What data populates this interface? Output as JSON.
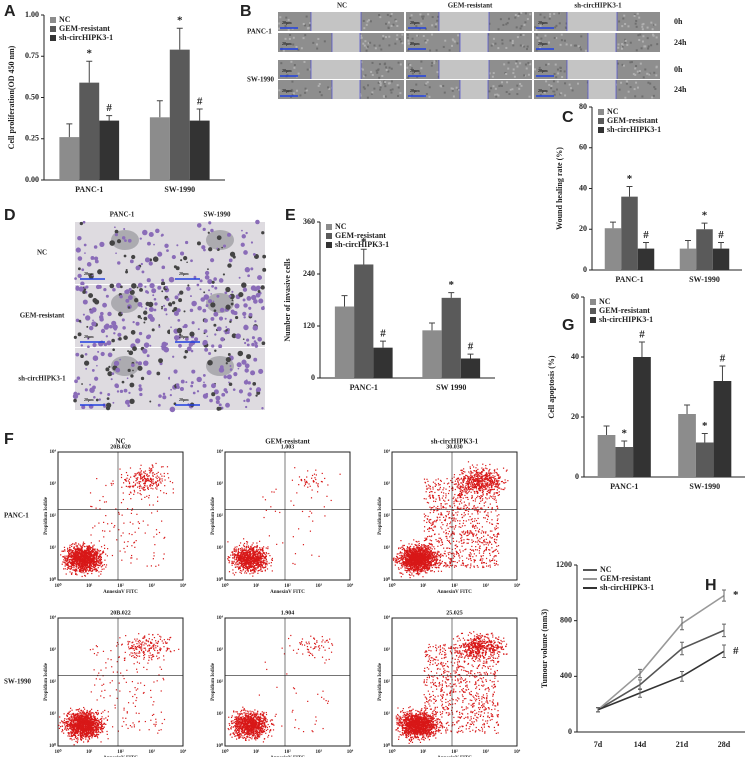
{
  "chart_data": [
    {
      "type": "bar",
      "letter": "A",
      "y_label": "Cell proliferation(OD 450 nm)",
      "categories": [
        "PANC-1",
        "SW-1990"
      ],
      "series": [
        {
          "name": "NC",
          "color": "#8c8c8c",
          "values": [
            0.26,
            0.38
          ],
          "errors": [
            0.08,
            0.1
          ]
        },
        {
          "name": "GEM-resistant",
          "color": "#5a5a5a",
          "values": [
            0.59,
            0.79
          ],
          "errors": [
            0.13,
            0.13
          ],
          "annotations": [
            "*",
            "*"
          ]
        },
        {
          "name": "sh-circHIPK3-1",
          "color": "#333333",
          "values": [
            0.36,
            0.36
          ],
          "errors": [
            0.03,
            0.07
          ],
          "annotations": [
            "#",
            "#"
          ]
        }
      ],
      "ylim": [
        0,
        1
      ],
      "yticks": [
        {
          "value": 0,
          "label": "0.00"
        },
        {
          "value": 0.25,
          "label": "0.25"
        },
        {
          "value": 0.5,
          "label": "0.50"
        },
        {
          "value": 0.75,
          "label": "0.75"
        },
        {
          "value": 1,
          "label": "1.00"
        }
      ]
    },
    {
      "type": "bar",
      "letter": "C",
      "y_label": "Wound healing rate (%)",
      "categories": [
        "PANC-1",
        "SW-1990"
      ],
      "series": [
        {
          "name": "NC",
          "color": "#8c8c8c",
          "values": [
            20.5,
            10.5
          ],
          "errors": [
            3,
            4
          ]
        },
        {
          "name": "GEM-resistant",
          "color": "#5a5a5a",
          "values": [
            36,
            20
          ],
          "errors": [
            5,
            3
          ],
          "annotations": [
            "*",
            "*"
          ]
        },
        {
          "name": "sh-circHIPK3-1",
          "color": "#333333",
          "values": [
            10.5,
            10.5
          ],
          "errors": [
            3,
            3
          ],
          "annotations": [
            "#",
            "#"
          ]
        }
      ],
      "ylim": [
        0,
        80
      ],
      "yticks": [
        0,
        20,
        40,
        60,
        80
      ]
    },
    {
      "type": "bar",
      "letter": "E",
      "y_label": "Number of invasive cells",
      "categories": [
        "PANC-1",
        "SW 1990"
      ],
      "series": [
        {
          "name": "NC",
          "color": "#8c8c8c",
          "values": [
            165,
            110
          ],
          "errors": [
            25,
            17
          ]
        },
        {
          "name": "GEM-resistant",
          "color": "#5a5a5a",
          "values": [
            262,
            185
          ],
          "errors": [
            35,
            12
          ],
          "annotations": [
            "*",
            "*"
          ]
        },
        {
          "name": "sh-circHIPK3-1",
          "color": "#333333",
          "values": [
            70,
            45
          ],
          "errors": [
            15,
            10
          ],
          "annotations": [
            "#",
            "#"
          ]
        }
      ],
      "ylim": [
        0,
        360
      ],
      "yticks": [
        0,
        120,
        240,
        360
      ]
    },
    {
      "type": "bar",
      "letter": "G",
      "y_label": "Cell apoptosis (%)",
      "categories": [
        "PANC-1",
        "SW-1990"
      ],
      "series": [
        {
          "name": "NC",
          "color": "#8c8c8c",
          "values": [
            14,
            21
          ],
          "errors": [
            3,
            3
          ]
        },
        {
          "name": "GEM-resistant",
          "color": "#5a5a5a",
          "values": [
            10,
            11.5
          ],
          "errors": [
            2,
            3
          ],
          "annotations": [
            "*",
            "*"
          ]
        },
        {
          "name": "sh-circHIPK3-1",
          "color": "#333333",
          "values": [
            40,
            32
          ],
          "errors": [
            5,
            5
          ],
          "annotations": [
            "#",
            "#"
          ]
        }
      ],
      "ylim": [
        0,
        60
      ],
      "yticks": [
        0,
        20,
        40,
        60
      ]
    },
    {
      "type": "line",
      "letter": "H",
      "y_label": "Tumour volume (mm3)",
      "x": [
        "7d",
        "14d",
        "21d",
        "28d"
      ],
      "series": [
        {
          "name": "NC",
          "color": "#555555",
          "values": [
            160,
            340,
            600,
            730
          ],
          "errors": [
            15,
            35,
            45,
            45
          ]
        },
        {
          "name": "GEM-resistant",
          "color": "#999999",
          "values": [
            160,
            420,
            780,
            980
          ],
          "errors": [
            15,
            30,
            45,
            40
          ],
          "annotations": [
            null,
            null,
            null,
            "*"
          ]
        },
        {
          "name": "sh-circHIPK3-1",
          "color": "#333333",
          "values": [
            160,
            280,
            400,
            580
          ],
          "errors": [
            15,
            30,
            35,
            45
          ],
          "annotations": [
            null,
            null,
            null,
            "#"
          ]
        }
      ],
      "ylim": [
        0,
        1200
      ],
      "yticks": [
        0,
        400,
        800,
        1200
      ]
    }
  ],
  "wound_panel": {
    "letter": "B",
    "columns": [
      "NC",
      "GEM-resistant",
      "sh-circHIPK3-1"
    ],
    "rows": [
      "PANC-1",
      "SW-1990"
    ],
    "times": [
      "0h",
      "24h"
    ],
    "scale_bar": "20μm"
  },
  "invasion_panel": {
    "letter": "D",
    "columns": [
      "PANC-1",
      "SW-1990"
    ],
    "rows": [
      "NC",
      "GEM-resistant",
      "sh-circHIPK3-1"
    ],
    "scale_bar": "20μm"
  },
  "flow_panel": {
    "letter": "F",
    "columns": [
      "NC",
      "GEM-resistant",
      "sh-circHIPK3-1"
    ],
    "rows": [
      "PANC-1",
      "SW-1990"
    ],
    "quadrant_values": [
      [
        "20B.020",
        "1.003",
        "30.030"
      ],
      [
        "20B.022",
        "1.904",
        "25.025"
      ]
    ],
    "x_label": "AnnexinV FITC",
    "y_label": "Propidium Iodide",
    "ticks": [
      "10⁰",
      "10¹",
      "10²",
      "10³",
      "10⁴"
    ]
  }
}
